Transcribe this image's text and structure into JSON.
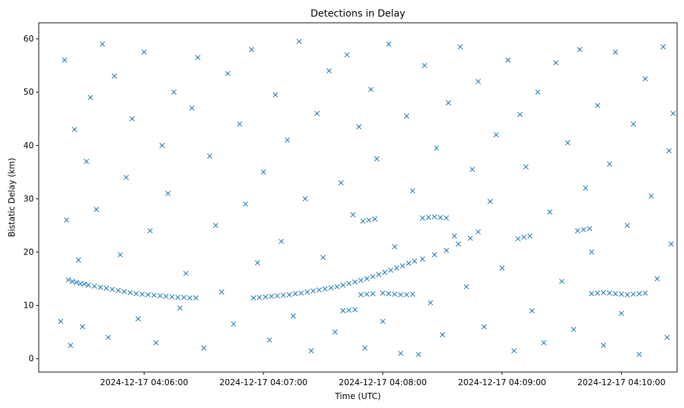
{
  "chart_data": {
    "type": "scatter",
    "title": "Detections in Delay",
    "xlabel": "Time (UTC)",
    "ylabel": "Bistatic Delay (km)",
    "marker": "x",
    "marker_color": "#1f77b4",
    "grid": false,
    "legend": "none",
    "x_unit": "time (UTC), 2024-12-17",
    "xlim": [
      "2024-12-17 04:05:07",
      "2024-12-17 04:10:28"
    ],
    "ylim": [
      -2.5,
      63
    ],
    "x_ticks": [
      {
        "value": "2024-12-17 04:06:00",
        "label": "2024-12-17 04:06:00"
      },
      {
        "value": "2024-12-17 04:07:00",
        "label": "2024-12-17 04:07:00"
      },
      {
        "value": "2024-12-17 04:08:00",
        "label": "2024-12-17 04:08:00"
      },
      {
        "value": "2024-12-17 04:09:00",
        "label": "2024-12-17 04:09:00"
      },
      {
        "value": "2024-12-17 04:10:00",
        "label": "2024-12-17 04:10:00"
      }
    ],
    "y_ticks": [
      {
        "value": 0,
        "label": "0"
      },
      {
        "value": 10,
        "label": "10"
      },
      {
        "value": 20,
        "label": "20"
      },
      {
        "value": 30,
        "label": "30"
      },
      {
        "value": 40,
        "label": "40"
      },
      {
        "value": 50,
        "label": "50"
      },
      {
        "value": 60,
        "label": "60"
      }
    ],
    "series": [
      {
        "points": [
          [
            "04:05:22",
            14.8
          ],
          [
            "04:05:24",
            14.5
          ],
          [
            "04:05:26",
            14.3
          ],
          [
            "04:05:28",
            14.1
          ],
          [
            "04:05:30",
            14.0
          ],
          [
            "04:05:32",
            13.8
          ],
          [
            "04:05:35",
            13.6
          ],
          [
            "04:05:38",
            13.4
          ],
          [
            "04:05:41",
            13.2
          ],
          [
            "04:05:44",
            13.0
          ],
          [
            "04:05:47",
            12.8
          ],
          [
            "04:05:50",
            12.6
          ],
          [
            "04:05:53",
            12.4
          ],
          [
            "04:05:56",
            12.2
          ],
          [
            "04:05:59",
            12.1
          ],
          [
            "04:06:02",
            12.0
          ],
          [
            "04:06:05",
            11.9
          ],
          [
            "04:06:08",
            11.8
          ],
          [
            "04:06:11",
            11.7
          ],
          [
            "04:06:14",
            11.6
          ],
          [
            "04:06:17",
            11.5
          ],
          [
            "04:06:20",
            11.5
          ],
          [
            "04:06:23",
            11.4
          ],
          [
            "04:06:26",
            11.4
          ],
          [
            "04:06:55",
            11.4
          ],
          [
            "04:06:58",
            11.5
          ],
          [
            "04:07:01",
            11.6
          ],
          [
            "04:07:04",
            11.7
          ],
          [
            "04:07:07",
            11.8
          ],
          [
            "04:07:10",
            11.9
          ],
          [
            "04:07:13",
            12.0
          ],
          [
            "04:07:16",
            12.2
          ],
          [
            "04:07:19",
            12.3
          ],
          [
            "04:07:22",
            12.5
          ],
          [
            "04:07:25",
            12.7
          ],
          [
            "04:07:28",
            12.9
          ],
          [
            "04:07:31",
            13.1
          ],
          [
            "04:07:34",
            13.3
          ],
          [
            "04:07:37",
            13.5
          ],
          [
            "04:07:40",
            13.8
          ],
          [
            "04:07:43",
            14.1
          ],
          [
            "04:07:46",
            14.4
          ],
          [
            "04:07:49",
            14.7
          ],
          [
            "04:07:52",
            15.0
          ],
          [
            "04:07:55",
            15.4
          ],
          [
            "04:07:58",
            15.8
          ],
          [
            "04:08:01",
            16.2
          ],
          [
            "04:08:04",
            16.6
          ],
          [
            "04:08:07",
            17.0
          ],
          [
            "04:08:10",
            17.4
          ],
          [
            "04:08:13",
            17.9
          ],
          [
            "04:08:16",
            18.3
          ],
          [
            "04:08:20",
            18.7
          ],
          [
            "04:08:26",
            19.5
          ],
          [
            "04:08:32",
            20.3
          ],
          [
            "04:08:38",
            21.5
          ],
          [
            "04:08:44",
            22.6
          ],
          [
            "04:08:48",
            23.8
          ],
          [
            "04:07:40",
            9.0
          ],
          [
            "04:07:43",
            9.1
          ],
          [
            "04:07:46",
            9.2
          ],
          [
            "04:07:49",
            12.0
          ],
          [
            "04:07:52",
            12.1
          ],
          [
            "04:07:55",
            12.2
          ],
          [
            "04:08:00",
            12.3
          ],
          [
            "04:08:03",
            12.2
          ],
          [
            "04:08:06",
            12.1
          ],
          [
            "04:08:09",
            12.0
          ],
          [
            "04:08:12",
            12.0
          ],
          [
            "04:08:15",
            12.1
          ],
          [
            "04:07:50",
            25.8
          ],
          [
            "04:07:53",
            26.0
          ],
          [
            "04:07:56",
            26.2
          ],
          [
            "04:08:20",
            26.4
          ],
          [
            "04:08:23",
            26.5
          ],
          [
            "04:08:26",
            26.6
          ],
          [
            "04:08:29",
            26.5
          ],
          [
            "04:08:32",
            26.4
          ],
          [
            "04:09:45",
            12.2
          ],
          [
            "04:09:48",
            12.3
          ],
          [
            "04:09:51",
            12.4
          ],
          [
            "04:09:54",
            12.3
          ],
          [
            "04:09:57",
            12.2
          ],
          [
            "04:10:00",
            12.1
          ],
          [
            "04:10:03",
            12.0
          ],
          [
            "04:10:06",
            12.1
          ],
          [
            "04:10:09",
            12.2
          ],
          [
            "04:10:12",
            12.3
          ],
          [
            "04:09:38",
            24.0
          ],
          [
            "04:09:41",
            24.2
          ],
          [
            "04:09:44",
            24.4
          ],
          [
            "04:09:08",
            22.5
          ],
          [
            "04:09:11",
            22.8
          ],
          [
            "04:09:14",
            23.0
          ],
          [
            "04:05:18",
            7.0
          ],
          [
            "04:05:20",
            56.0
          ],
          [
            "04:05:21",
            26.0
          ],
          [
            "04:05:23",
            2.5
          ],
          [
            "04:05:25",
            43.0
          ],
          [
            "04:05:27",
            18.5
          ],
          [
            "04:05:29",
            6.0
          ],
          [
            "04:05:31",
            37.0
          ],
          [
            "04:05:33",
            49.0
          ],
          [
            "04:05:36",
            28.0
          ],
          [
            "04:05:39",
            59.0
          ],
          [
            "04:05:42",
            4.0
          ],
          [
            "04:05:45",
            53.0
          ],
          [
            "04:05:48",
            19.5
          ],
          [
            "04:05:51",
            34.0
          ],
          [
            "04:05:54",
            45.0
          ],
          [
            "04:05:57",
            7.5
          ],
          [
            "04:06:00",
            57.5
          ],
          [
            "04:06:03",
            24.0
          ],
          [
            "04:06:06",
            3.0
          ],
          [
            "04:06:09",
            40.0
          ],
          [
            "04:06:12",
            31.0
          ],
          [
            "04:06:15",
            50.0
          ],
          [
            "04:06:18",
            9.5
          ],
          [
            "04:06:21",
            16.0
          ],
          [
            "04:06:24",
            47.0
          ],
          [
            "04:06:27",
            56.5
          ],
          [
            "04:06:30",
            2.0
          ],
          [
            "04:06:33",
            38.0
          ],
          [
            "04:06:36",
            25.0
          ],
          [
            "04:06:39",
            12.5
          ],
          [
            "04:06:42",
            53.5
          ],
          [
            "04:06:45",
            6.5
          ],
          [
            "04:06:48",
            44.0
          ],
          [
            "04:06:51",
            29.0
          ],
          [
            "04:06:54",
            58.0
          ],
          [
            "04:06:57",
            18.0
          ],
          [
            "04:07:00",
            35.0
          ],
          [
            "04:07:03",
            3.5
          ],
          [
            "04:07:06",
            49.5
          ],
          [
            "04:07:09",
            22.0
          ],
          [
            "04:07:12",
            41.0
          ],
          [
            "04:07:15",
            8.0
          ],
          [
            "04:07:18",
            59.5
          ],
          [
            "04:07:21",
            30.0
          ],
          [
            "04:07:24",
            1.5
          ],
          [
            "04:07:27",
            46.0
          ],
          [
            "04:07:30",
            19.0
          ],
          [
            "04:07:33",
            54.0
          ],
          [
            "04:07:36",
            5.0
          ],
          [
            "04:07:39",
            33.0
          ],
          [
            "04:07:42",
            57.0
          ],
          [
            "04:07:45",
            27.0
          ],
          [
            "04:07:48",
            43.5
          ],
          [
            "04:07:51",
            2.0
          ],
          [
            "04:07:54",
            50.5
          ],
          [
            "04:07:57",
            37.5
          ],
          [
            "04:08:00",
            7.0
          ],
          [
            "04:08:03",
            59.0
          ],
          [
            "04:08:06",
            21.0
          ],
          [
            "04:08:09",
            1.0
          ],
          [
            "04:08:12",
            45.5
          ],
          [
            "04:08:15",
            31.5
          ],
          [
            "04:08:18",
            0.8
          ],
          [
            "04:08:21",
            55.0
          ],
          [
            "04:08:24",
            10.5
          ],
          [
            "04:08:27",
            39.5
          ],
          [
            "04:08:30",
            4.5
          ],
          [
            "04:08:33",
            48.0
          ],
          [
            "04:08:36",
            23.0
          ],
          [
            "04:08:39",
            58.5
          ],
          [
            "04:08:42",
            13.5
          ],
          [
            "04:08:45",
            35.5
          ],
          [
            "04:08:48",
            52.0
          ],
          [
            "04:08:51",
            6.0
          ],
          [
            "04:08:54",
            29.5
          ],
          [
            "04:08:57",
            42.0
          ],
          [
            "04:09:00",
            17.0
          ],
          [
            "04:09:03",
            56.0
          ],
          [
            "04:09:06",
            1.5
          ],
          [
            "04:09:09",
            45.8
          ],
          [
            "04:09:12",
            36.0
          ],
          [
            "04:09:15",
            9.0
          ],
          [
            "04:09:18",
            50.0
          ],
          [
            "04:09:21",
            3.0
          ],
          [
            "04:09:24",
            27.5
          ],
          [
            "04:09:27",
            55.5
          ],
          [
            "04:09:30",
            14.5
          ],
          [
            "04:09:33",
            40.5
          ],
          [
            "04:09:36",
            5.5
          ],
          [
            "04:09:39",
            58.0
          ],
          [
            "04:09:42",
            32.0
          ],
          [
            "04:09:45",
            20.0
          ],
          [
            "04:09:48",
            47.5
          ],
          [
            "04:09:51",
            2.5
          ],
          [
            "04:09:54",
            36.5
          ],
          [
            "04:09:57",
            57.5
          ],
          [
            "04:10:00",
            8.5
          ],
          [
            "04:10:03",
            25.0
          ],
          [
            "04:10:06",
            44.0
          ],
          [
            "04:10:09",
            0.8
          ],
          [
            "04:10:12",
            52.5
          ],
          [
            "04:10:15",
            30.5
          ],
          [
            "04:10:18",
            15.0
          ],
          [
            "04:10:21",
            58.5
          ],
          [
            "04:10:23",
            4.0
          ],
          [
            "04:10:24",
            39.0
          ],
          [
            "04:10:25",
            21.5
          ],
          [
            "04:10:26",
            46.0
          ]
        ]
      }
    ]
  }
}
